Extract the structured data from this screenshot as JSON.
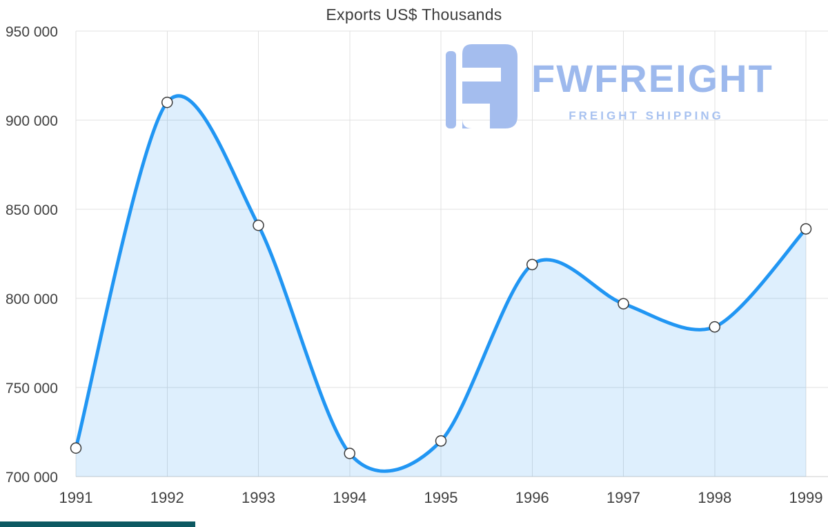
{
  "page": {
    "background": "#ffffff"
  },
  "logo": {
    "name": "FWFREIGHT",
    "subtitle": "FREIGHT SHIPPING",
    "color": "#9db9ed"
  },
  "chart_data": {
    "type": "area",
    "title": "Exports US$ Thousands",
    "x": [
      "1991",
      "1992",
      "1993",
      "1994",
      "1995",
      "1996",
      "1997",
      "1998",
      "1999"
    ],
    "values": [
      716000,
      910000,
      841000,
      713000,
      720000,
      819000,
      797000,
      784000,
      839000
    ],
    "ylim": [
      700000,
      950000
    ],
    "ytick_step": 50000,
    "ytick_labels": [
      "700 000",
      "750 000",
      "800 000",
      "850 000",
      "900 000",
      "950 000"
    ],
    "grid": true,
    "legend_position": "none",
    "line_color": "#2196f3",
    "line_width": 5,
    "area_fill": "#2196f3",
    "area_opacity": 0.15,
    "marker_fill": "#ffffff",
    "marker_stroke": "#3a3a3a",
    "grid_color": "#e0e0e0",
    "axis_line_color": "#cccccc",
    "axis_label_color": "#3f3f3f"
  },
  "ui": {
    "bottom_strip_color": "#0d5962"
  }
}
